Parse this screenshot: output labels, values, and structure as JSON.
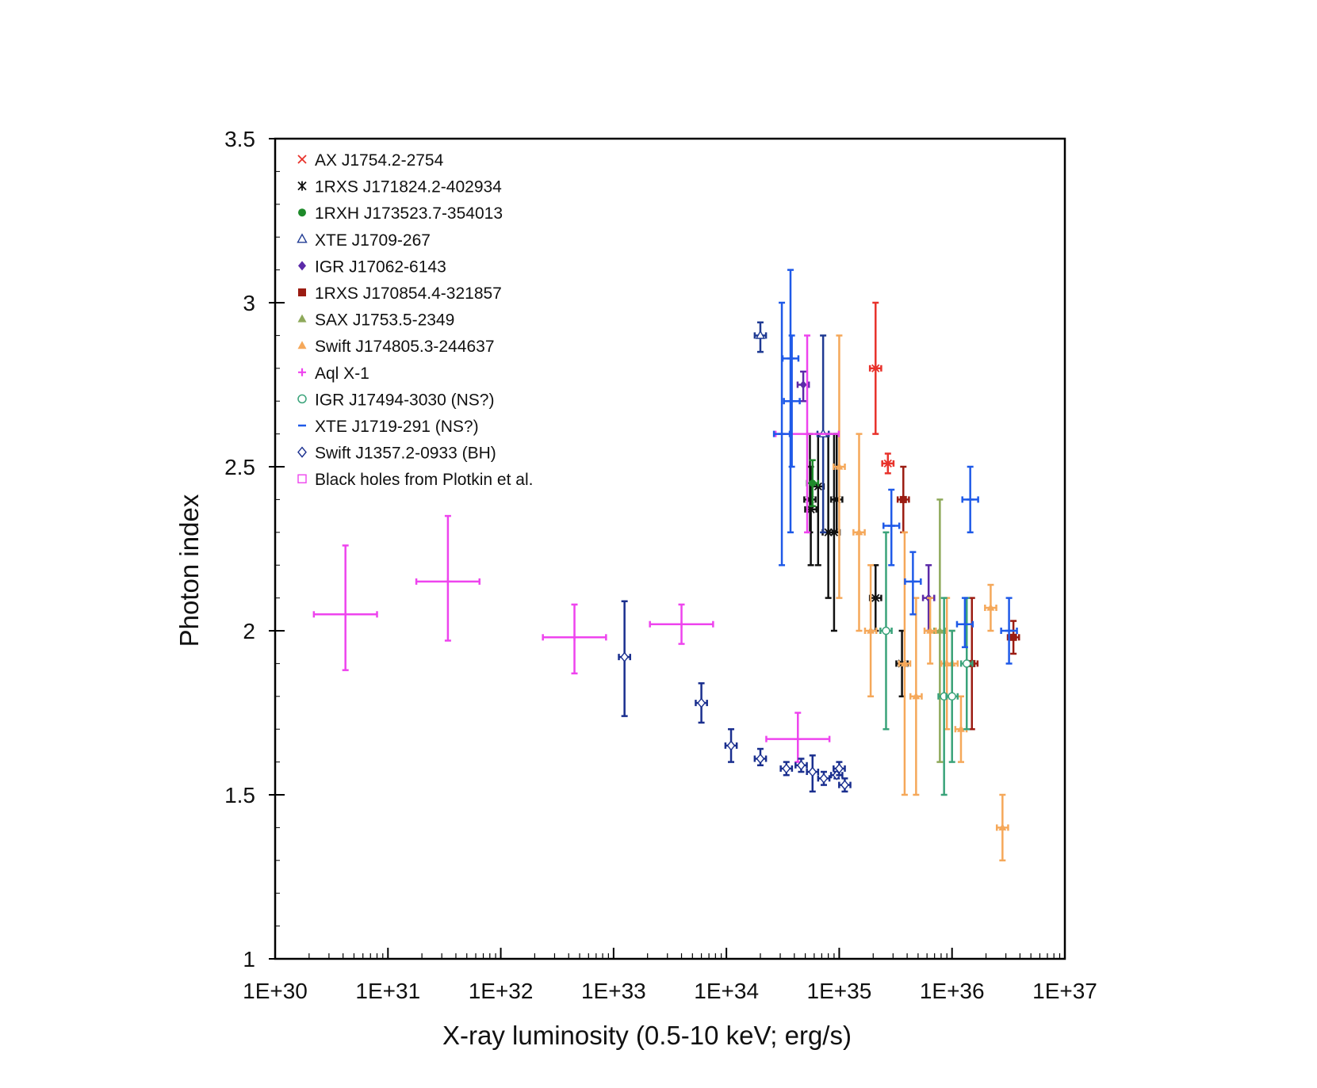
{
  "chart_data": {
    "type": "scatter",
    "title": "",
    "xlabel": "X-ray luminosity (0.5-10 keV; erg/s)",
    "ylabel": "Photon index",
    "xscale": "log",
    "xlim": [
      1e+30,
      1e+37
    ],
    "ylim": [
      1,
      3.5
    ],
    "x_ticks": [
      1e+30,
      1e+31,
      1e+32,
      1e+33,
      1e+34,
      1e+35,
      1e+36,
      1e+37
    ],
    "x_tick_labels": [
      "1E+30",
      "1E+31",
      "1E+32",
      "1E+33",
      "1E+34",
      "1E+35",
      "1E+36",
      "1E+37"
    ],
    "y_ticks": [
      1,
      1.5,
      2,
      2.5,
      3,
      3.5
    ],
    "y_tick_labels": [
      "1",
      "1.5",
      "2",
      "2.5",
      "3",
      "3.5"
    ],
    "legend_position": "top-left",
    "series": [
      {
        "name": "AX J1754.2-2754",
        "color": "#e8322b",
        "marker": "x",
        "points": [
          [
            2.1e+35,
            2.8,
            2.6,
            3.0
          ],
          [
            2.7e+35,
            2.51,
            2.48,
            2.54
          ]
        ]
      },
      {
        "name": "1RXS J171824.2-402934",
        "color": "#111111",
        "marker": "star",
        "points": [
          [
            5.5e+34,
            2.4,
            2.3,
            2.6
          ],
          [
            5.6e+34,
            2.37,
            2.2,
            2.5
          ],
          [
            6.5e+34,
            2.44,
            2.2,
            2.6
          ],
          [
            8e+34,
            2.3,
            2.1,
            2.6
          ],
          [
            9e+34,
            2.3,
            2.0,
            2.6
          ],
          [
            9.5e+34,
            2.4,
            2.3,
            2.6
          ],
          [
            2.1e+35,
            2.1,
            2.0,
            2.2
          ],
          [
            3.6e+35,
            1.9,
            1.8,
            2.0
          ]
        ]
      },
      {
        "name": "1RXH J173523.7-354013",
        "color": "#1e8a2a",
        "marker": "circle",
        "points": [
          [
            5.8e+34,
            2.45,
            2.38,
            2.52
          ]
        ]
      },
      {
        "name": "XTE J1709-267",
        "color": "#1f3a93",
        "marker": "triangle-open",
        "points": [
          [
            2e+34,
            2.9,
            2.85,
            2.94
          ],
          [
            7.2e+34,
            2.6,
            2.3,
            2.9
          ]
        ]
      },
      {
        "name": "IGR J17062-6143",
        "color": "#5b2aa8",
        "marker": "diamond",
        "points": [
          [
            4.8e+34,
            2.75,
            2.7,
            2.79
          ],
          [
            6.2e+35,
            2.1,
            2.0,
            2.2
          ]
        ]
      },
      {
        "name": "1RXS J170854.4-321857",
        "color": "#9b1c12",
        "marker": "square",
        "points": [
          [
            3.7e+35,
            2.4,
            2.3,
            2.5
          ],
          [
            1.5e+36,
            1.9,
            1.7,
            2.1
          ],
          [
            3.5e+36,
            1.98,
            1.93,
            2.03
          ]
        ]
      },
      {
        "name": "SAX J1753.5-2349",
        "color": "#8ea95a",
        "marker": "triangle",
        "points": [
          [
            7.8e+35,
            2.0,
            1.6,
            2.4
          ]
        ]
      },
      {
        "name": "Swift J174805.3-244637",
        "color": "#f5a85a",
        "marker": "triangle",
        "points": [
          [
            1e+35,
            2.5,
            2.1,
            2.9
          ],
          [
            1.5e+35,
            2.3,
            2.0,
            2.6
          ],
          [
            1.9e+35,
            2.0,
            1.8,
            2.2
          ],
          [
            3.8e+35,
            1.9,
            1.5,
            2.3
          ],
          [
            4.8e+35,
            1.8,
            1.5,
            2.1
          ],
          [
            6.4e+35,
            2.0,
            1.9,
            2.1
          ],
          [
            9e+35,
            1.9,
            1.7,
            2.1
          ],
          [
            1e+36,
            1.9,
            1.8,
            2.0
          ],
          [
            1.2e+36,
            1.7,
            1.6,
            1.8
          ],
          [
            2.2e+36,
            2.07,
            2.0,
            2.14
          ],
          [
            2.8e+36,
            1.4,
            1.3,
            1.5
          ]
        ]
      },
      {
        "name": "Aql X-1",
        "color": "#ee44ee",
        "marker": "plus",
        "points": [
          [
            4.2e+30,
            2.05,
            1.88,
            2.26
          ],
          [
            3.4e+31,
            2.15,
            1.97,
            2.35
          ],
          [
            4.5e+32,
            1.98,
            1.87,
            2.08
          ],
          [
            4e+33,
            2.02,
            1.96,
            2.08
          ],
          [
            4.3e+34,
            1.67,
            1.6,
            1.75
          ],
          [
            5.2e+34,
            2.6,
            2.3,
            2.9
          ]
        ]
      },
      {
        "name": "IGR J17494-3030 (NS?)",
        "color": "#3aa37a",
        "marker": "circle-open",
        "points": [
          [
            2.6e+35,
            2.0,
            1.7,
            2.3
          ],
          [
            8.5e+35,
            1.8,
            1.5,
            2.1
          ],
          [
            1e+36,
            1.8,
            1.6,
            2.0
          ],
          [
            1.35e+36,
            1.9,
            1.7,
            2.1
          ]
        ]
      },
      {
        "name": "XTE J1719-291 (NS?)",
        "color": "#1f5ae8",
        "marker": "dash",
        "points": [
          [
            3.7e+34,
            2.83,
            2.3,
            3.1
          ],
          [
            3.1e+34,
            2.6,
            2.2,
            3.0
          ],
          [
            3.8e+34,
            2.7,
            2.5,
            2.9
          ],
          [
            2.9e+35,
            2.32,
            2.2,
            2.43
          ],
          [
            4.5e+35,
            2.15,
            2.05,
            2.24
          ],
          [
            1.3e+36,
            2.02,
            1.95,
            2.1
          ],
          [
            1.45e+36,
            2.4,
            2.3,
            2.5
          ],
          [
            3.2e+36,
            2.0,
            1.9,
            2.1
          ]
        ]
      },
      {
        "name": "Swift J1357.2-0933 (BH)",
        "color": "#1a2f8f",
        "marker": "diamond-open",
        "points": [
          [
            1.25e+33,
            1.92,
            1.74,
            2.09
          ],
          [
            6e+33,
            1.78,
            1.72,
            1.84
          ],
          [
            1.1e+34,
            1.65,
            1.6,
            1.7
          ],
          [
            2e+34,
            1.61,
            1.59,
            1.64
          ],
          [
            3.4e+34,
            1.58,
            1.56,
            1.6
          ],
          [
            4.6e+34,
            1.59,
            1.57,
            1.61
          ],
          [
            5.8e+34,
            1.57,
            1.51,
            1.62
          ],
          [
            7.3e+34,
            1.55,
            1.53,
            1.57
          ],
          [
            9.5e+34,
            1.56,
            1.55,
            1.57
          ],
          [
            1e+35,
            1.58,
            1.56,
            1.6
          ],
          [
            1.12e+35,
            1.53,
            1.51,
            1.55
          ]
        ]
      },
      {
        "name": "Black holes from Plotkin et al.",
        "color": "#ee44ee",
        "marker": "square-open",
        "points": []
      }
    ]
  }
}
